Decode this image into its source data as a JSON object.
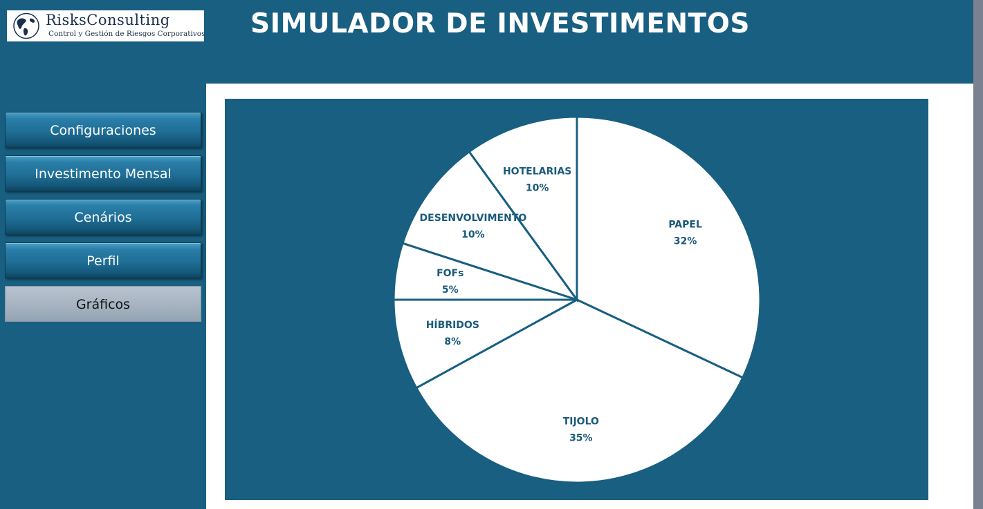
{
  "logo": {
    "name": "RisksConsulting",
    "tagline": "Control y Gestión de Riesgos Corporativos"
  },
  "header": {
    "title": "SIMULADOR DE INVESTIMENTOS"
  },
  "sidebar": {
    "items": [
      {
        "label": "Configuraciones",
        "active": false
      },
      {
        "label": "Investimento Mensal",
        "active": false
      },
      {
        "label": "Cenários",
        "active": false
      },
      {
        "label": "Perfil",
        "active": false
      },
      {
        "label": "Gráficos",
        "active": true
      }
    ]
  },
  "colors": {
    "background": "#185f81",
    "slice_fill": "#ffffff",
    "slice_border": "#185f81",
    "label": "#1a5a7a",
    "active_button": "#a4b1bf"
  },
  "chart_data": {
    "type": "pie",
    "title": "",
    "slices": [
      {
        "name": "PAPEL",
        "value": 32,
        "label": "32%"
      },
      {
        "name": "TIJOLO",
        "value": 35,
        "label": "35%"
      },
      {
        "name": "HÍBRIDOS",
        "value": 8,
        "label": "8%"
      },
      {
        "name": "FOFs",
        "value": 5,
        "label": "5%"
      },
      {
        "name": "DESENVOLVIMENTO",
        "value": 10,
        "label": "10%"
      },
      {
        "name": "HOTELARIAS",
        "value": 10,
        "label": "10%"
      }
    ],
    "start": "12 o'clock",
    "direction": "clockwise",
    "legend": "none"
  }
}
